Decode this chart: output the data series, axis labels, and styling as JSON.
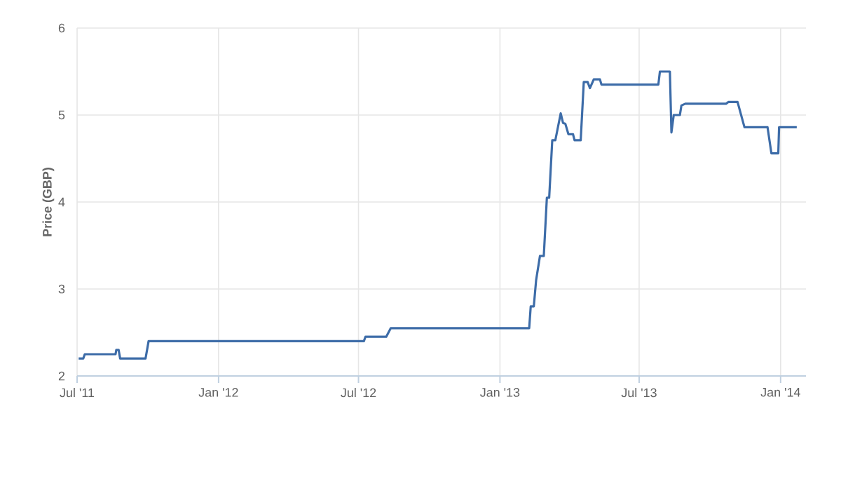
{
  "chart_data": {
    "type": "line",
    "ylabel": "Price (GBP)",
    "x": [
      "2011-07-03",
      "2011-07-09",
      "2011-07-11",
      "2011-08-20",
      "2011-08-21",
      "2011-08-24",
      "2011-08-26",
      "2011-09-28",
      "2011-10-02",
      "2012-07-08",
      "2012-07-10",
      "2012-08-06",
      "2012-08-12",
      "2013-02-08",
      "2013-02-10",
      "2013-02-14",
      "2013-02-17",
      "2013-02-22",
      "2013-02-27",
      "2013-03-03",
      "2013-03-06",
      "2013-03-10",
      "2013-03-14",
      "2013-03-21",
      "2013-03-24",
      "2013-03-27",
      "2013-03-31",
      "2013-04-06",
      "2013-04-08",
      "2013-04-16",
      "2013-04-20",
      "2013-04-25",
      "2013-04-28",
      "2013-05-03",
      "2013-05-11",
      "2013-05-13",
      "2013-07-26",
      "2013-07-28",
      "2013-08-10",
      "2013-08-12",
      "2013-08-15",
      "2013-08-23",
      "2013-08-25",
      "2013-08-30",
      "2013-10-22",
      "2013-10-25",
      "2013-11-06",
      "2013-11-15",
      "2013-12-15",
      "2013-12-20",
      "2013-12-29",
      "2013-12-30",
      "2014-01-22"
    ],
    "series": [
      {
        "color": "#3d6ca8",
        "values": [
          2.2,
          2.2,
          2.25,
          2.25,
          2.3,
          2.3,
          2.2,
          2.2,
          2.4,
          2.4,
          2.45,
          2.45,
          2.55,
          2.55,
          2.8,
          2.8,
          3.1,
          3.38,
          3.38,
          4.05,
          4.05,
          4.71,
          4.71,
          5.02,
          4.91,
          4.9,
          4.78,
          4.78,
          4.71,
          4.71,
          5.38,
          5.38,
          5.31,
          5.41,
          5.41,
          5.35,
          5.35,
          5.5,
          5.5,
          4.8,
          5.0,
          5.0,
          5.11,
          5.13,
          5.13,
          5.15,
          5.15,
          4.86,
          4.86,
          4.56,
          4.56,
          4.86,
          4.86
        ]
      }
    ],
    "xlim": [
      "2011-07-01",
      "2014-02-03"
    ],
    "xticks": [
      {
        "value": "2011-07-01",
        "label": "Jul '11"
      },
      {
        "value": "2012-01-01",
        "label": "Jan '12"
      },
      {
        "value": "2012-07-01",
        "label": "Jul '12"
      },
      {
        "value": "2013-01-01",
        "label": "Jan '13"
      },
      {
        "value": "2013-07-01",
        "label": "Jul '13"
      },
      {
        "value": "2014-01-01",
        "label": "Jan '14"
      }
    ],
    "ylim": [
      2,
      6
    ],
    "yticks": [
      2,
      3,
      4,
      5,
      6
    ],
    "grid": true,
    "line_style": "solid",
    "marker": "none"
  }
}
